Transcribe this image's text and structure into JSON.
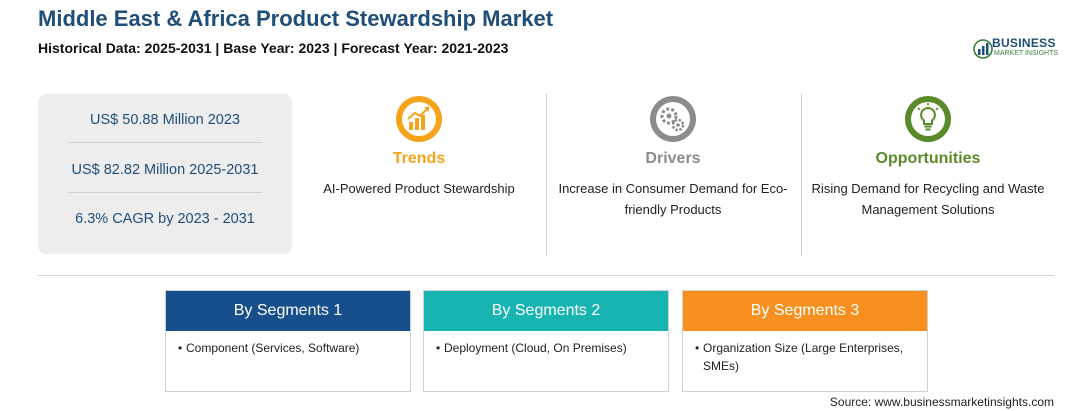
{
  "header": {
    "title": "Middle East & Africa Product Stewardship Market",
    "subtitle": "Historical Data: 2025-2031 | Base Year: 2023 | Forecast Year: 2021-2023"
  },
  "logo": {
    "brand": "BUSINESS",
    "tagline": "MARKET INSIGHTS",
    "icon": "globe-chart-icon"
  },
  "stats": [
    "US$ 50.88 Million 2023",
    "US$ 82.82 Million 2025-2031",
    "6.3% CAGR by 2023 - 2031"
  ],
  "columns": [
    {
      "heading": "Trends",
      "description": "AI-Powered Product Stewardship",
      "icon": "trend-chart-icon",
      "color": "#f7a21b"
    },
    {
      "heading": "Drivers",
      "description": "Increase in Consumer Demand for Eco-friendly Products",
      "icon": "gears-icon",
      "color": "#8c8c8c"
    },
    {
      "heading": "Opportunities",
      "description": "Rising Demand for Recycling and Waste Management Solutions",
      "icon": "lightbulb-icon",
      "color": "#5a8a2a"
    }
  ],
  "segments": [
    {
      "label": "By Segments 1",
      "item": "Component (Services, Software)",
      "color": "#164f8c"
    },
    {
      "label": "By Segments 2",
      "item": "Deployment (Cloud, On Premises)",
      "color": "#17b4b1"
    },
    {
      "label": "By Segments 3",
      "item": "Organization Size (Large Enterprises, SMEs)",
      "color": "#f7901e"
    }
  ],
  "source": "Source: www.businessmarketinsights.com"
}
